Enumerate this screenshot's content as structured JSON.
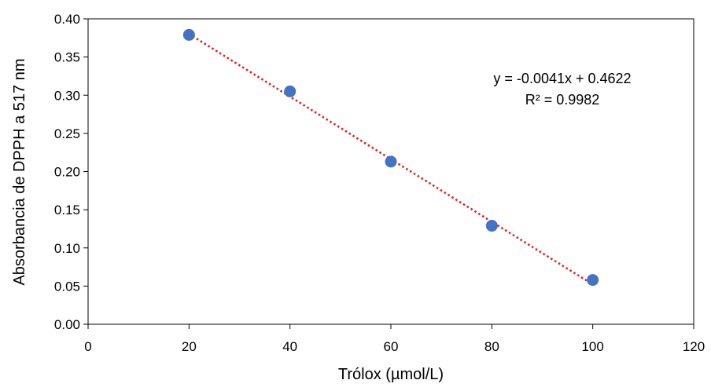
{
  "chart_data": {
    "type": "scatter",
    "xlabel": "Trólox (µmol/L)",
    "ylabel": "Absorbancia de DPPH a 517 nm",
    "xlim": [
      0,
      120
    ],
    "ylim": [
      0.0,
      0.4
    ],
    "xticks": [
      0,
      20,
      40,
      60,
      80,
      100,
      120
    ],
    "xtick_labels": [
      "0",
      "20",
      "40",
      "60",
      "80",
      "100",
      "120"
    ],
    "yticks": [
      0.0,
      0.05,
      0.1,
      0.15,
      0.2,
      0.25,
      0.3,
      0.35,
      0.4
    ],
    "ytick_labels": [
      "0.00",
      "0.05",
      "0.10",
      "0.15",
      "0.20",
      "0.25",
      "0.30",
      "0.35",
      "0.40"
    ],
    "grid": false,
    "series": [
      {
        "x": [
          20,
          40,
          60,
          80,
          100
        ],
        "y": [
          0.379,
          0.305,
          0.213,
          0.129,
          0.058
        ],
        "color": "#4472C4"
      }
    ],
    "trendline": {
      "slope": -0.0041,
      "intercept": 0.4622,
      "x_range": [
        20,
        100
      ],
      "color": "#E02020",
      "style": "dotted"
    },
    "annotations": {
      "equation": "y = -0.0041x + 0.4622",
      "r_squared": "R² = 0.9982"
    }
  }
}
